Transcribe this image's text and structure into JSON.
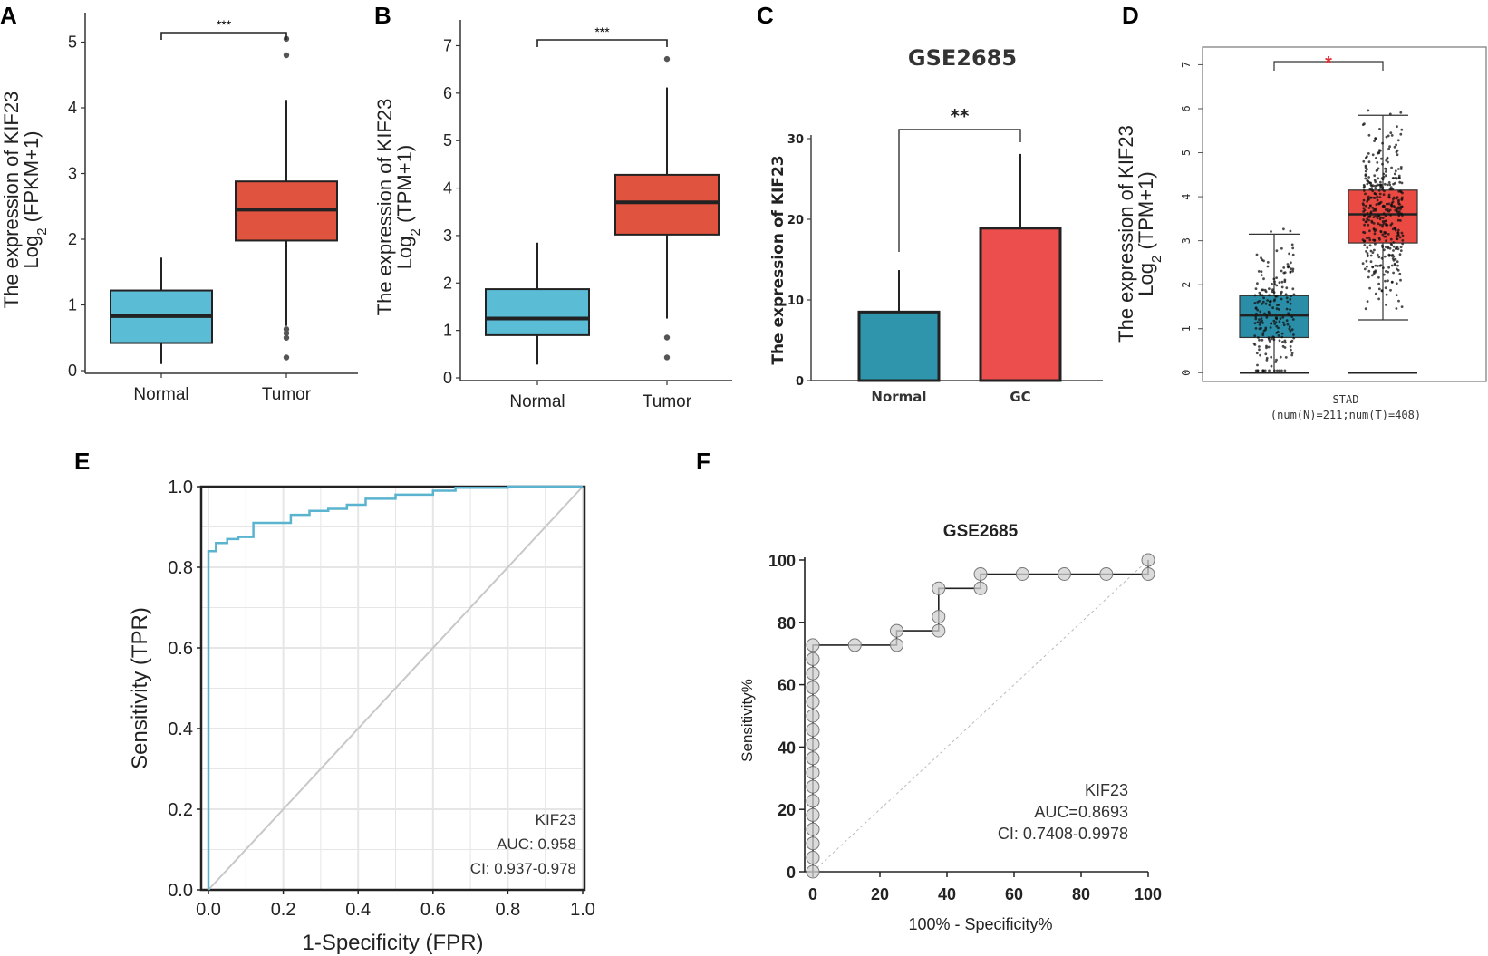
{
  "colors": {
    "normal_a": "#5bbcd6",
    "tumor_a": "#e0533e",
    "normal_c": "#2e95ad",
    "gc_c": "#ec4e4e",
    "normal_d": "#2b8ea8",
    "tumor_d": "#ea4a42",
    "roc_e": "#5ab4d0",
    "diag": "#c8c8c8"
  },
  "panels": {
    "A": {
      "label": "A"
    },
    "B": {
      "label": "B"
    },
    "C": {
      "label": "C"
    },
    "D": {
      "label": "D"
    },
    "E": {
      "label": "E"
    },
    "F": {
      "label": "F"
    }
  },
  "chart_data": [
    {
      "id": "A",
      "type": "box",
      "ylabel_line1": "The expression of KIF23",
      "ylabel_line2_prefix": "Log",
      "ylabel_line2_sub": "2",
      "ylabel_line2_suffix": " (FPKM+1)",
      "categories": [
        "Normal",
        "Tumor"
      ],
      "ylim": [
        0,
        5.2
      ],
      "yticks": [
        "0",
        "1",
        "2",
        "3",
        "4",
        "5"
      ],
      "boxes": [
        {
          "name": "Normal",
          "min": 0.1,
          "q1": 0.42,
          "median": 0.83,
          "q3": 1.22,
          "max": 1.72,
          "outliers": []
        },
        {
          "name": "Tumor",
          "min": 0.68,
          "q1": 1.98,
          "median": 2.45,
          "q3": 2.88,
          "max": 4.12,
          "outliers": [
            0.2,
            0.5,
            0.57,
            0.63,
            4.8,
            5.05
          ]
        }
      ],
      "significance": "***"
    },
    {
      "id": "B",
      "type": "box",
      "ylabel_line1": "The expression of KIF23",
      "ylabel_line2_prefix": "Log",
      "ylabel_line2_sub": "2",
      "ylabel_line2_suffix": " (TPM+1)",
      "categories": [
        "Normal",
        "Tumor"
      ],
      "ylim": [
        0,
        7.2
      ],
      "yticks": [
        "0",
        "1",
        "2",
        "3",
        "4",
        "5",
        "6",
        "7"
      ],
      "boxes": [
        {
          "name": "Normal",
          "min": 0.28,
          "q1": 0.9,
          "median": 1.25,
          "q3": 1.87,
          "max": 2.85,
          "outliers": []
        },
        {
          "name": "Tumor",
          "min": 1.25,
          "q1": 3.02,
          "median": 3.7,
          "q3": 4.28,
          "max": 6.12,
          "outliers": [
            0.43,
            0.85,
            6.72
          ]
        }
      ],
      "significance": "***"
    },
    {
      "id": "C",
      "type": "bar",
      "title": "GSE2685",
      "ylabel": "The expression of KIF23",
      "categories": [
        "Normal",
        "GC"
      ],
      "values": [
        8.5,
        18.9
      ],
      "errors": [
        5.2,
        9.2
      ],
      "ylim": [
        0,
        30
      ],
      "yticks": [
        "0",
        "10",
        "20",
        "30"
      ],
      "significance": "**"
    },
    {
      "id": "D",
      "type": "box-jitter",
      "ylabel_line1": "The expression of KIF23",
      "ylabel_line2_prefix": "Log",
      "ylabel_line2_sub": "2",
      "ylabel_line2_suffix": " (TPM+1)",
      "xlabel_line1": "STAD",
      "xlabel_line2": "(num(N)=211;num(T)=408)",
      "ylim": [
        -0.2,
        7.4
      ],
      "yticks": [
        "0",
        "1",
        "2",
        "3",
        "4",
        "5",
        "6",
        "7"
      ],
      "boxes": [
        {
          "name": "Normal",
          "min": 0.0,
          "q1": 0.8,
          "median": 1.3,
          "q3": 1.75,
          "max": 3.15,
          "whisker_low": 0.0
        },
        {
          "name": "Tumor",
          "min": 0.0,
          "q1": 2.95,
          "median": 3.6,
          "q3": 4.15,
          "max": 5.85,
          "whisker_low": 1.2
        }
      ],
      "n_normal": 211,
      "n_tumor": 408,
      "significance": "*"
    },
    {
      "id": "E",
      "type": "line",
      "xlabel": "1-Specificity (FPR)",
      "ylabel": "Sensitivity (TPR)",
      "xlim": [
        0,
        1
      ],
      "ylim": [
        0,
        1
      ],
      "xticks": [
        "0.0",
        "0.2",
        "0.4",
        "0.6",
        "0.8",
        "1.0"
      ],
      "yticks": [
        "0.0",
        "0.2",
        "0.4",
        "0.6",
        "0.8",
        "1.0"
      ],
      "roc": [
        [
          0,
          0
        ],
        [
          0,
          0.84
        ],
        [
          0.02,
          0.84
        ],
        [
          0.02,
          0.86
        ],
        [
          0.05,
          0.86
        ],
        [
          0.05,
          0.87
        ],
        [
          0.08,
          0.87
        ],
        [
          0.08,
          0.875
        ],
        [
          0.12,
          0.875
        ],
        [
          0.12,
          0.91
        ],
        [
          0.22,
          0.91
        ],
        [
          0.22,
          0.93
        ],
        [
          0.27,
          0.93
        ],
        [
          0.27,
          0.94
        ],
        [
          0.32,
          0.94
        ],
        [
          0.32,
          0.945
        ],
        [
          0.37,
          0.945
        ],
        [
          0.37,
          0.955
        ],
        [
          0.42,
          0.955
        ],
        [
          0.42,
          0.97
        ],
        [
          0.5,
          0.97
        ],
        [
          0.5,
          0.98
        ],
        [
          0.6,
          0.98
        ],
        [
          0.6,
          0.99
        ],
        [
          0.66,
          0.99
        ],
        [
          0.66,
          0.997
        ],
        [
          0.8,
          0.997
        ],
        [
          0.8,
          1.0
        ],
        [
          1.0,
          1.0
        ]
      ],
      "legend": [
        "KIF23",
        "AUC: 0.958",
        "CI: 0.937-0.978"
      ]
    },
    {
      "id": "F",
      "type": "line",
      "title": "GSE2685",
      "xlabel": "100% - Specificity%",
      "ylabel": "Sensitivity%",
      "xlim": [
        0,
        100
      ],
      "ylim": [
        0,
        100
      ],
      "xticks": [
        "0",
        "20",
        "40",
        "60",
        "80",
        "100"
      ],
      "yticks": [
        "0",
        "20",
        "40",
        "60",
        "80",
        "100"
      ],
      "roc": [
        [
          0,
          0
        ],
        [
          0,
          72.7
        ],
        [
          25,
          72.7
        ],
        [
          25,
          77.3
        ],
        [
          37.5,
          77.3
        ],
        [
          37.5,
          90.9
        ],
        [
          50,
          90.9
        ],
        [
          50,
          95.5
        ],
        [
          100,
          95.5
        ],
        [
          100,
          100
        ]
      ],
      "points": [
        [
          0,
          0
        ],
        [
          0,
          4.5
        ],
        [
          0,
          9.1
        ],
        [
          0,
          13.6
        ],
        [
          0,
          18.2
        ],
        [
          0,
          22.7
        ],
        [
          0,
          27.3
        ],
        [
          0,
          31.8
        ],
        [
          0,
          36.4
        ],
        [
          0,
          40.9
        ],
        [
          0,
          45.5
        ],
        [
          0,
          50
        ],
        [
          0,
          54.5
        ],
        [
          0,
          59.1
        ],
        [
          0,
          63.6
        ],
        [
          0,
          68.2
        ],
        [
          0,
          72.7
        ],
        [
          12.5,
          72.7
        ],
        [
          25,
          72.7
        ],
        [
          25,
          77.3
        ],
        [
          37.5,
          77.3
        ],
        [
          37.5,
          81.8
        ],
        [
          37.5,
          90.9
        ],
        [
          50,
          90.9
        ],
        [
          50,
          95.5
        ],
        [
          62.5,
          95.5
        ],
        [
          75,
          95.5
        ],
        [
          87.5,
          95.5
        ],
        [
          100,
          95.5
        ],
        [
          100,
          100
        ]
      ],
      "legend": [
        "KIF23",
        "AUC=0.8693",
        "CI: 0.7408-0.9978"
      ]
    }
  ]
}
